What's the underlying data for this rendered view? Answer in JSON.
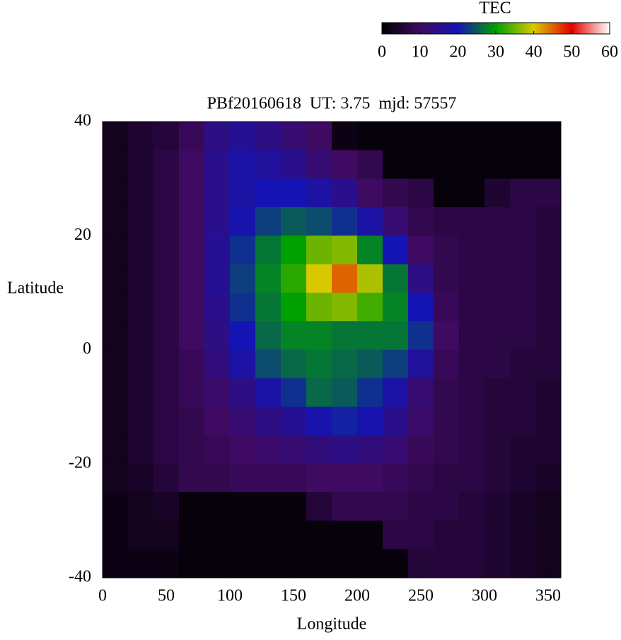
{
  "chart_data": {
    "type": "heatmap",
    "title": "PBf20160618  UT: 3.75  mjd: 57557",
    "xlabel": "Longitude",
    "ylabel": "Latitude",
    "colorbar_label": "TEC",
    "x": [
      10,
      30,
      50,
      70,
      90,
      110,
      130,
      150,
      170,
      190,
      210,
      230,
      250,
      270,
      290,
      310,
      330,
      350
    ],
    "y": [
      37.5,
      32.5,
      27.5,
      22.5,
      17.5,
      12.5,
      7.5,
      2.5,
      -2.5,
      -7.5,
      -12.5,
      -17.5,
      -22.5,
      -27.5,
      -32.5,
      -37.5
    ],
    "z": [
      [
        3,
        5,
        6,
        9,
        14,
        16,
        14,
        12,
        10,
        2,
        1,
        1,
        1,
        1,
        1,
        1,
        1,
        1
      ],
      [
        3,
        5,
        7,
        10,
        15,
        18,
        17,
        15,
        12,
        10,
        8,
        1,
        1,
        1,
        1,
        1,
        1,
        1
      ],
      [
        3,
        5,
        7,
        10,
        15,
        18,
        20,
        20,
        18,
        15,
        10,
        8,
        7,
        1,
        1,
        5,
        7,
        7
      ],
      [
        3,
        5,
        7,
        10,
        15,
        19,
        23,
        25,
        24,
        22,
        18,
        12,
        8,
        7,
        7,
        7,
        7,
        6
      ],
      [
        3,
        5,
        7,
        10,
        16,
        22,
        27,
        30,
        35,
        36,
        28,
        20,
        10,
        8,
        7,
        7,
        7,
        6
      ],
      [
        3,
        5,
        7,
        10,
        16,
        23,
        28,
        32,
        40,
        45,
        38,
        27,
        14,
        8,
        7,
        7,
        7,
        6
      ],
      [
        3,
        5,
        7,
        10,
        15,
        22,
        27,
        30,
        35,
        36,
        33,
        28,
        20,
        9,
        7,
        7,
        7,
        6
      ],
      [
        3,
        5,
        7,
        10,
        14,
        20,
        26,
        28,
        28,
        27,
        27,
        27,
        22,
        10,
        7,
        7,
        7,
        6
      ],
      [
        3,
        5,
        7,
        9,
        13,
        18,
        24,
        26,
        27,
        26,
        25,
        23,
        17,
        9,
        7,
        7,
        6,
        6
      ],
      [
        3,
        5,
        7,
        9,
        11,
        14,
        18,
        22,
        26,
        25,
        22,
        18,
        12,
        8,
        7,
        6,
        6,
        5
      ],
      [
        3,
        5,
        7,
        8,
        10,
        12,
        14,
        16,
        19,
        21,
        19,
        15,
        11,
        8,
        7,
        6,
        6,
        5
      ],
      [
        3,
        5,
        7,
        8,
        9,
        10,
        11,
        12,
        13,
        14,
        13,
        12,
        9,
        8,
        7,
        6,
        5,
        5
      ],
      [
        3,
        4,
        6,
        8,
        8,
        9,
        9,
        9,
        10,
        10,
        10,
        9,
        8,
        7,
        7,
        6,
        5,
        4
      ],
      [
        2,
        3,
        4,
        1,
        1,
        1,
        1,
        1,
        6,
        8,
        8,
        8,
        7,
        7,
        6,
        5,
        4,
        3
      ],
      [
        2,
        3,
        3,
        1,
        1,
        1,
        1,
        1,
        1,
        1,
        1,
        7,
        7,
        6,
        6,
        5,
        4,
        3
      ],
      [
        2,
        2,
        2,
        1,
        1,
        1,
        1,
        1,
        1,
        1,
        1,
        1,
        6,
        6,
        6,
        5,
        4,
        3
      ]
    ],
    "xlim": [
      0,
      360
    ],
    "xticks": [
      0,
      50,
      100,
      150,
      200,
      250,
      300,
      350
    ],
    "ylim": [
      -40,
      40
    ],
    "yticks": [
      -40,
      -20,
      0,
      20,
      40
    ],
    "clim": [
      0,
      60
    ],
    "cticks": [
      0,
      10,
      20,
      30,
      40,
      50,
      60
    ],
    "colormap": [
      "#000000",
      "#3e0a62",
      "#1414b4",
      "#00a000",
      "#d8c800",
      "#e40000",
      "#ffffff"
    ]
  }
}
